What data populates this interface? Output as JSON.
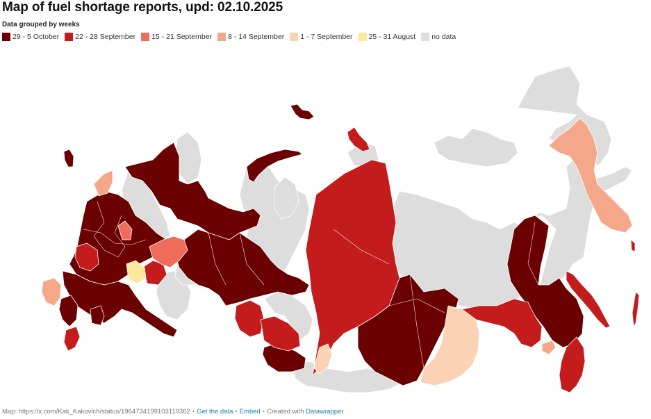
{
  "title": "Map of fuel shortage reports, upd: 02.10.2025",
  "legend": {
    "title": "Data grouped by weeks",
    "items": [
      {
        "label": "29 - 5 October",
        "color": "#6b0000"
      },
      {
        "label": "22 - 28 September",
        "color": "#c41c1c"
      },
      {
        "label": "15 - 21 September",
        "color": "#ef6b5a"
      },
      {
        "label": "8 - 14 September",
        "color": "#f5a889"
      },
      {
        "label": "1 - 7 September",
        "color": "#fcd2b4"
      },
      {
        "label": "25 - 31 August",
        "color": "#fbe89b"
      },
      {
        "label": "no data",
        "color": "#dddddd"
      }
    ]
  },
  "footer": {
    "source": "Map: https://x.com/Kak_Kakovich/status/1964734199103119362",
    "get_data": "Get the data",
    "embed": "Embed",
    "created_with": "Created with",
    "datawrapper": "Datawrapper"
  }
}
